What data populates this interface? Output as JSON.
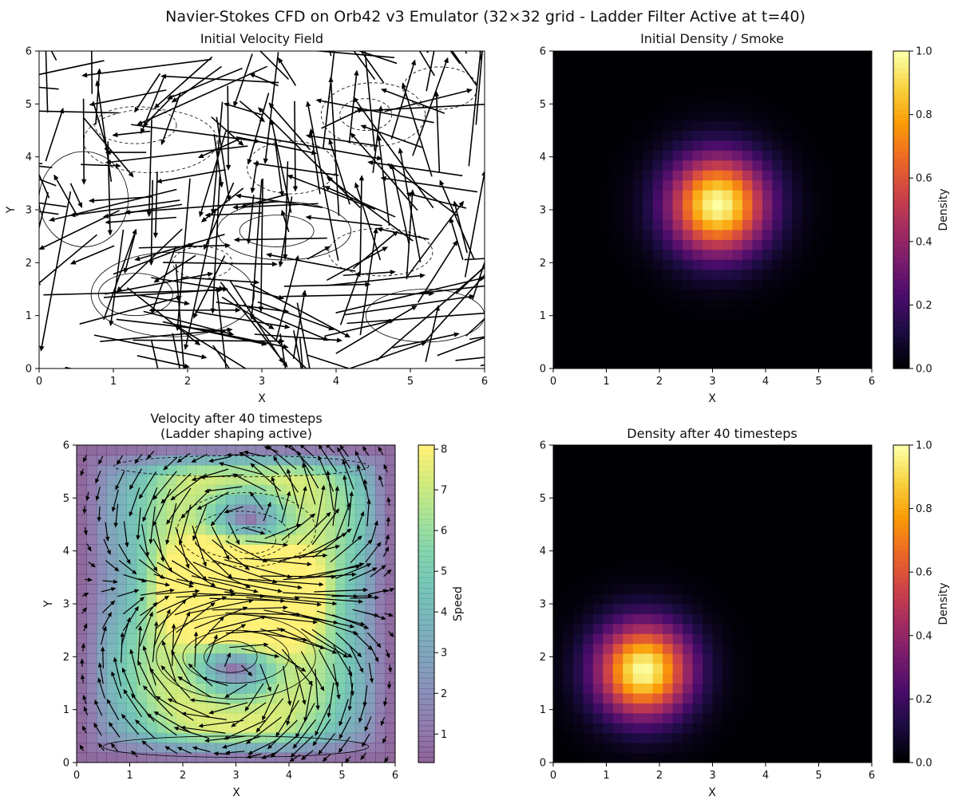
{
  "figure": {
    "title": "Navier-Stokes CFD on Orb42 v3 Emulator (32×32 grid - Ladder Filter Active at t=40)"
  },
  "chart_data": [
    {
      "id": "initial_velocity",
      "type": "quiver",
      "title": "Initial Velocity Field",
      "xlabel": "X",
      "ylabel": "Y",
      "xlim": [
        0,
        6
      ],
      "ylim": [
        0,
        6
      ],
      "xticks": [
        0,
        1,
        2,
        3,
        4,
        5,
        6
      ],
      "yticks": [
        0,
        1,
        2,
        3,
        4,
        5,
        6
      ],
      "background": "#ffffff",
      "arrow_color": "#000000",
      "contours": true
    },
    {
      "id": "initial_density",
      "type": "heatmap",
      "title": "Initial Density / Smoke",
      "xlabel": "X",
      "ylabel": "",
      "xlim": [
        0,
        6
      ],
      "ylim": [
        0,
        6
      ],
      "grid": 32,
      "colormap": "inferno",
      "blob": {
        "center_x": 3.1,
        "center_y": 3.1,
        "sigma": 0.65,
        "peak": 1.0
      },
      "colorbar": {
        "label": "Density",
        "ticks": [
          "0.0",
          "0.2",
          "0.4",
          "0.6",
          "0.8",
          "1.0"
        ],
        "range": [
          0,
          1
        ]
      }
    },
    {
      "id": "velocity_after",
      "type": "quiver",
      "title_lines": [
        "Velocity after 40 timesteps",
        "(Ladder shaping active)"
      ],
      "xlabel": "X",
      "ylabel": "Y",
      "xlim": [
        0,
        6
      ],
      "ylim": [
        0,
        6
      ],
      "grid": 32,
      "colormap": "viridis",
      "arrow_color": "#000000",
      "contours": true,
      "colorbar": {
        "label": "Speed",
        "ticks": [
          "1",
          "2",
          "3",
          "4",
          "5",
          "6",
          "7",
          "8"
        ],
        "range": [
          0.3,
          8.1
        ]
      }
    },
    {
      "id": "density_after",
      "type": "heatmap",
      "title": "Density after 40 timesteps",
      "xlabel": "X",
      "ylabel": "",
      "xlim": [
        0,
        6
      ],
      "ylim": [
        0,
        6
      ],
      "grid": 32,
      "colormap": "inferno",
      "blob": {
        "center_x": 1.7,
        "center_y": 1.75,
        "sigma": 0.62,
        "peak": 1.0
      },
      "colorbar": {
        "label": "Density",
        "ticks": [
          "0.0",
          "0.2",
          "0.4",
          "0.6",
          "0.8",
          "1.0"
        ],
        "range": [
          0,
          1
        ]
      }
    }
  ],
  "colormaps": {
    "inferno": [
      "#000004",
      "#1b0c41",
      "#4a0c6b",
      "#781c6d",
      "#a52c60",
      "#cf4446",
      "#ed6925",
      "#fb9b06",
      "#f7d13d",
      "#fcffa4"
    ],
    "viridis": [
      "#440154",
      "#482878",
      "#3e4989",
      "#31688e",
      "#26828e",
      "#1f9e89",
      "#35b779",
      "#6ece58",
      "#b5de2b",
      "#fde725"
    ]
  }
}
